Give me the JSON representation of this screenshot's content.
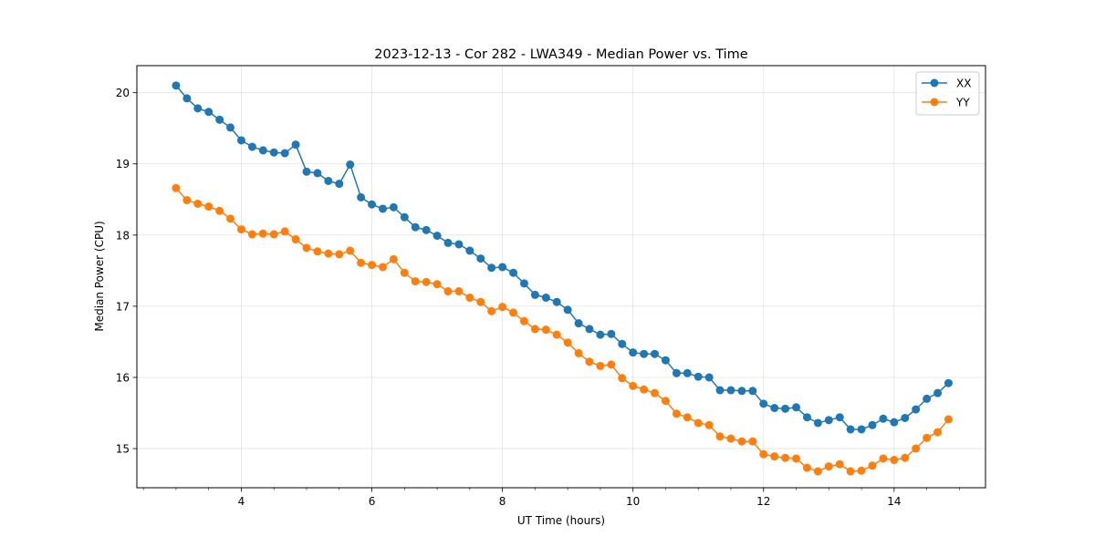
{
  "chart_data": {
    "type": "line",
    "title": "2023-12-13 - Cor 282 - LWA349 - Median Power vs. Time",
    "xlabel": "UT Time (hours)",
    "ylabel": "Median Power (CPU)",
    "xlim": [
      2.4,
      15.4
    ],
    "ylim": [
      14.45,
      20.38
    ],
    "xticks": [
      4,
      6,
      8,
      10,
      12,
      14
    ],
    "yticks": [
      15,
      16,
      17,
      18,
      19,
      20
    ],
    "xtick_labels": [
      "4",
      "6",
      "8",
      "10",
      "12",
      "14"
    ],
    "ytick_labels": [
      "15",
      "16",
      "17",
      "18",
      "19",
      "20"
    ],
    "minor_xticks": [
      2.5,
      3,
      3.5,
      4.5,
      5,
      5.5,
      6.5,
      7,
      7.5,
      8.5,
      9,
      9.5,
      10.5,
      11,
      11.5,
      12.5,
      13,
      13.5,
      14.5,
      15
    ],
    "grid": true,
    "legend_position": "top-right",
    "x": [
      3.0,
      3.167,
      3.333,
      3.5,
      3.667,
      3.833,
      4.0,
      4.167,
      4.333,
      4.5,
      4.667,
      4.833,
      5.0,
      5.167,
      5.333,
      5.5,
      5.667,
      5.833,
      6.0,
      6.167,
      6.333,
      6.5,
      6.667,
      6.833,
      7.0,
      7.167,
      7.333,
      7.5,
      7.667,
      7.833,
      8.0,
      8.167,
      8.333,
      8.5,
      8.667,
      8.833,
      9.0,
      9.167,
      9.333,
      9.5,
      9.667,
      9.833,
      10.0,
      10.167,
      10.333,
      10.5,
      10.667,
      10.833,
      11.0,
      11.167,
      11.333,
      11.5,
      11.667,
      11.833,
      12.0,
      12.167,
      12.333,
      12.5,
      12.667,
      12.833,
      13.0,
      13.167,
      13.333,
      13.5,
      13.667,
      13.833,
      14.0,
      14.167,
      14.333,
      14.5,
      14.667,
      14.833
    ],
    "series": [
      {
        "name": "XX",
        "color": "#1f77b4",
        "values": [
          20.1,
          19.92,
          19.78,
          19.73,
          19.62,
          19.51,
          19.33,
          19.24,
          19.19,
          19.16,
          19.15,
          19.27,
          18.89,
          18.87,
          18.76,
          18.72,
          18.99,
          18.53,
          18.43,
          18.37,
          18.39,
          18.25,
          18.11,
          18.07,
          17.99,
          17.89,
          17.87,
          17.78,
          17.67,
          17.54,
          17.55,
          17.47,
          17.32,
          17.16,
          17.12,
          17.06,
          16.95,
          16.76,
          16.68,
          16.6,
          16.61,
          16.47,
          16.35,
          16.33,
          16.33,
          16.24,
          16.06,
          16.06,
          16.01,
          16.0,
          15.82,
          15.82,
          15.81,
          15.81,
          15.63,
          15.57,
          15.56,
          15.58,
          15.44,
          15.36,
          15.4,
          15.44,
          15.27,
          15.27,
          15.33,
          15.42,
          15.37,
          15.43,
          15.55,
          15.7,
          15.78,
          15.92
        ]
      },
      {
        "name": "YY",
        "color": "#ff7f0e",
        "values": [
          18.66,
          18.49,
          18.44,
          18.4,
          18.34,
          18.23,
          18.08,
          18.01,
          18.02,
          18.01,
          18.05,
          17.94,
          17.82,
          17.77,
          17.74,
          17.73,
          17.78,
          17.61,
          17.58,
          17.55,
          17.66,
          17.47,
          17.35,
          17.34,
          17.31,
          17.21,
          17.21,
          17.12,
          17.06,
          16.93,
          16.99,
          16.91,
          16.79,
          16.68,
          16.67,
          16.6,
          16.49,
          16.34,
          16.22,
          16.16,
          16.18,
          15.99,
          15.88,
          15.83,
          15.78,
          15.67,
          15.49,
          15.44,
          15.36,
          15.33,
          15.17,
          15.14,
          15.1,
          15.1,
          14.92,
          14.89,
          14.87,
          14.86,
          14.73,
          14.68,
          14.75,
          14.78,
          14.68,
          14.69,
          14.76,
          14.86,
          14.84,
          14.87,
          15.0,
          15.15,
          15.23,
          15.41
        ]
      }
    ]
  }
}
